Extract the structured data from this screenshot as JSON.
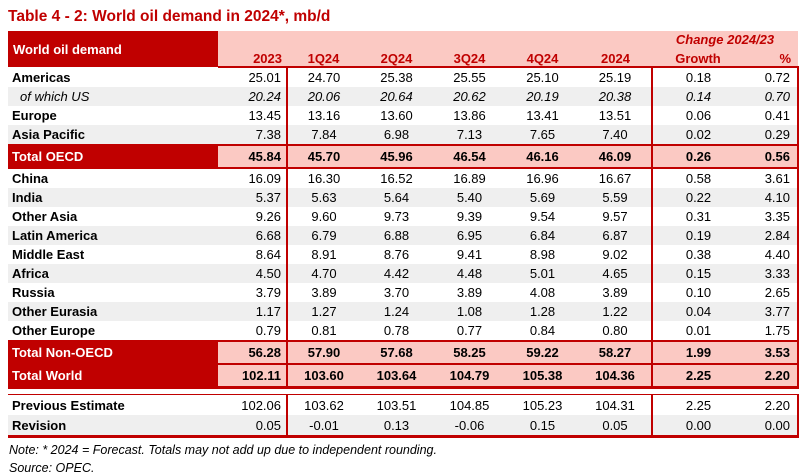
{
  "title": "Table 4 - 2: World oil demand in 2024*, mb/d",
  "accent_colors": {
    "dark_red": "#C00000",
    "pink": "#FBC9C3",
    "band_gray": "#EFEFEF"
  },
  "table": {
    "label_header": "World oil demand",
    "change_header": "Change 2024/23",
    "columns": [
      "2023",
      "1Q24",
      "2Q24",
      "3Q24",
      "4Q24",
      "2024",
      "Growth",
      "%"
    ],
    "rows": [
      {
        "label": "Americas",
        "type": "region",
        "shaded": false,
        "values": [
          "25.01",
          "24.70",
          "25.38",
          "25.55",
          "25.10",
          "25.19",
          "0.18",
          "0.72"
        ]
      },
      {
        "label": "of which US",
        "type": "sub",
        "shaded": true,
        "values": [
          "20.24",
          "20.06",
          "20.64",
          "20.62",
          "20.19",
          "20.38",
          "0.14",
          "0.70"
        ]
      },
      {
        "label": "Europe",
        "type": "region",
        "shaded": false,
        "values": [
          "13.45",
          "13.16",
          "13.60",
          "13.86",
          "13.41",
          "13.51",
          "0.06",
          "0.41"
        ]
      },
      {
        "label": "Asia Pacific",
        "type": "region",
        "shaded": true,
        "values": [
          "7.38",
          "7.84",
          "6.98",
          "7.13",
          "7.65",
          "7.40",
          "0.02",
          "0.29"
        ]
      },
      {
        "label": "Total OECD",
        "type": "total",
        "shaded": false,
        "values": [
          "45.84",
          "45.70",
          "45.96",
          "46.54",
          "46.16",
          "46.09",
          "0.26",
          "0.56"
        ]
      },
      {
        "label": "China",
        "type": "region",
        "shaded": false,
        "values": [
          "16.09",
          "16.30",
          "16.52",
          "16.89",
          "16.96",
          "16.67",
          "0.58",
          "3.61"
        ]
      },
      {
        "label": "India",
        "type": "region",
        "shaded": true,
        "values": [
          "5.37",
          "5.63",
          "5.64",
          "5.40",
          "5.69",
          "5.59",
          "0.22",
          "4.10"
        ]
      },
      {
        "label": "Other Asia",
        "type": "region",
        "shaded": false,
        "values": [
          "9.26",
          "9.60",
          "9.73",
          "9.39",
          "9.54",
          "9.57",
          "0.31",
          "3.35"
        ]
      },
      {
        "label": "Latin America",
        "type": "region",
        "shaded": true,
        "values": [
          "6.68",
          "6.79",
          "6.88",
          "6.95",
          "6.84",
          "6.87",
          "0.19",
          "2.84"
        ]
      },
      {
        "label": "Middle East",
        "type": "region",
        "shaded": false,
        "values": [
          "8.64",
          "8.91",
          "8.76",
          "9.41",
          "8.98",
          "9.02",
          "0.38",
          "4.40"
        ]
      },
      {
        "label": "Africa",
        "type": "region",
        "shaded": true,
        "values": [
          "4.50",
          "4.70",
          "4.42",
          "4.48",
          "5.01",
          "4.65",
          "0.15",
          "3.33"
        ]
      },
      {
        "label": "Russia",
        "type": "region",
        "shaded": false,
        "values": [
          "3.79",
          "3.89",
          "3.70",
          "3.89",
          "4.08",
          "3.89",
          "0.10",
          "2.65"
        ]
      },
      {
        "label": "Other Eurasia",
        "type": "region",
        "shaded": true,
        "values": [
          "1.17",
          "1.27",
          "1.24",
          "1.08",
          "1.28",
          "1.22",
          "0.04",
          "3.77"
        ]
      },
      {
        "label": "Other Europe",
        "type": "region",
        "shaded": false,
        "values": [
          "0.79",
          "0.81",
          "0.78",
          "0.77",
          "0.84",
          "0.80",
          "0.01",
          "1.75"
        ]
      },
      {
        "label": "Total Non-OECD",
        "type": "total",
        "shaded": false,
        "values": [
          "56.28",
          "57.90",
          "57.68",
          "58.25",
          "59.22",
          "58.27",
          "1.99",
          "3.53"
        ]
      },
      {
        "label": "Total World",
        "type": "world",
        "shaded": false,
        "values": [
          "102.11",
          "103.60",
          "103.64",
          "104.79",
          "105.38",
          "104.36",
          "2.25",
          "2.20"
        ]
      },
      {
        "label": "Previous Estimate",
        "type": "prev",
        "shaded": false,
        "values": [
          "102.06",
          "103.62",
          "103.51",
          "104.85",
          "105.23",
          "104.31",
          "2.25",
          "2.20"
        ]
      },
      {
        "label": "Revision",
        "type": "rev",
        "shaded": true,
        "values": [
          "0.05",
          "-0.01",
          "0.13",
          "-0.06",
          "0.15",
          "0.05",
          "0.00",
          "0.00"
        ]
      }
    ]
  },
  "note": "Note: * 2024 = Forecast. Totals may not add up due to independent rounding.",
  "source": "Source: OPEC."
}
